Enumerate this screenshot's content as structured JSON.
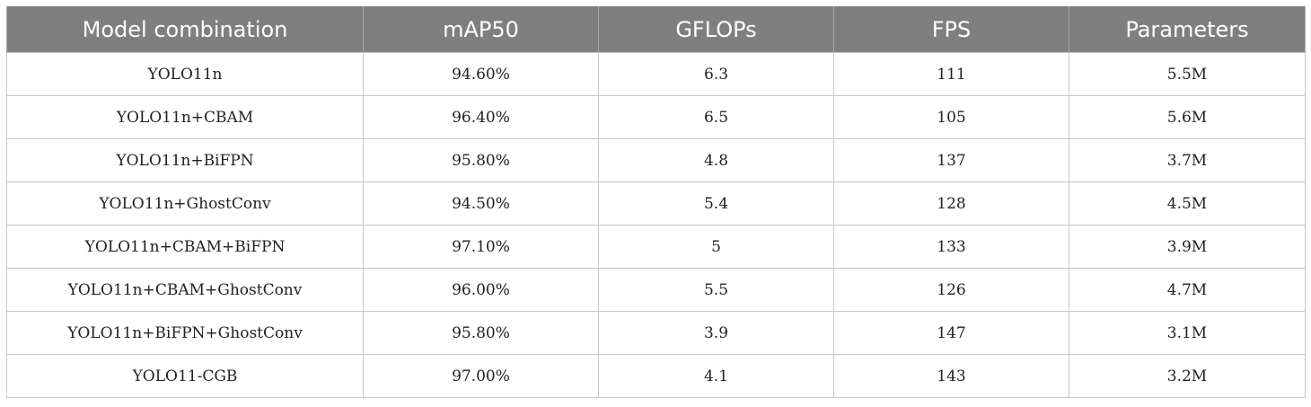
{
  "table": {
    "headers": [
      "Model combination",
      "mAP50",
      "GFLOPs",
      "FPS",
      "Parameters"
    ],
    "rows": [
      [
        "YOLO11n",
        "94.60%",
        "6.3",
        "111",
        "5.5M"
      ],
      [
        "YOLO11n+CBAM",
        "96.40%",
        "6.5",
        "105",
        "5.6M"
      ],
      [
        "YOLO11n+BiFPN",
        "95.80%",
        "4.8",
        "137",
        "3.7M"
      ],
      [
        "YOLO11n+GhostConv",
        "94.50%",
        "5.4",
        "128",
        "4.5M"
      ],
      [
        "YOLO11n+CBAM+BiFPN",
        "97.10%",
        "5",
        "133",
        "3.9M"
      ],
      [
        "YOLO11n+CBAM+GhostConv",
        "96.00%",
        "5.5",
        "126",
        "4.7M"
      ],
      [
        "YOLO11n+BiFPN+GhostConv",
        "95.80%",
        "3.9",
        "147",
        "3.1M"
      ],
      [
        "YOLO11-CGB",
        "97.00%",
        "4.1",
        "143",
        "3.2M"
      ]
    ]
  },
  "colors": {
    "header_background": "#7f7f7f",
    "header_text": "#ffffff",
    "cell_border": "#c8c8c8",
    "cell_text": "#222222"
  }
}
